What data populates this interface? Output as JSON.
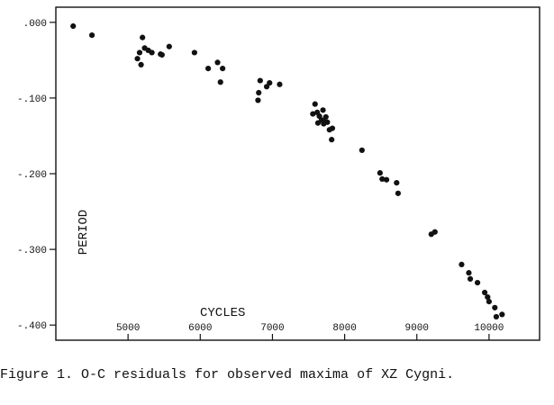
{
  "chart_data": {
    "type": "scatter",
    "title": "",
    "xlabel": "CYCLES",
    "ylabel": "PERIOD",
    "xlim": [
      4000,
      10700
    ],
    "ylim": [
      -0.42,
      0.02
    ],
    "grid": false,
    "x_ticks": [
      5000,
      6000,
      7000,
      8000,
      9000,
      10000
    ],
    "x_tick_labels": [
      "5000",
      "6000",
      "7000",
      "8000",
      "9000",
      "10000"
    ],
    "y_ticks": [
      0.0,
      -0.1,
      -0.2,
      -0.3,
      -0.4
    ],
    "y_tick_labels": [
      ".000",
      "-.100",
      "-.200",
      "-.300",
      "-.400"
    ],
    "series": [
      {
        "x": [
          4240,
          4500,
          5130,
          5160,
          5180,
          5200,
          5230,
          5280,
          5330,
          5450,
          5470,
          5570,
          5920,
          6110,
          6240,
          6280,
          6310,
          6800,
          6810,
          6830,
          6920,
          6960,
          7100,
          7560,
          7590,
          7620,
          7630,
          7650,
          7680,
          7700,
          7710,
          7720,
          7740,
          7760,
          7790,
          7820,
          7830,
          8240,
          8490,
          8520,
          8580,
          8720,
          8740,
          9200,
          9250,
          9620,
          9720,
          9740,
          9840,
          9940,
          9980,
          10000,
          10080,
          10100,
          10180
        ],
        "y": [
          -0.005,
          -0.017,
          -0.048,
          -0.04,
          -0.056,
          -0.02,
          -0.034,
          -0.037,
          -0.04,
          -0.042,
          -0.043,
          -0.032,
          -0.04,
          -0.061,
          -0.053,
          -0.079,
          -0.061,
          -0.103,
          -0.093,
          -0.077,
          -0.085,
          -0.08,
          -0.082,
          -0.121,
          -0.108,
          -0.119,
          -0.133,
          -0.124,
          -0.129,
          -0.116,
          -0.134,
          -0.131,
          -0.125,
          -0.132,
          -0.142,
          -0.155,
          -0.14,
          -0.169,
          -0.199,
          -0.207,
          -0.208,
          -0.212,
          -0.226,
          -0.28,
          -0.277,
          -0.32,
          -0.331,
          -0.339,
          -0.344,
          -0.357,
          -0.363,
          -0.369,
          -0.377,
          -0.389,
          -0.386
        ]
      }
    ]
  },
  "caption": "Figure 1.  O-C residuals for observed maxima of XZ Cygni."
}
